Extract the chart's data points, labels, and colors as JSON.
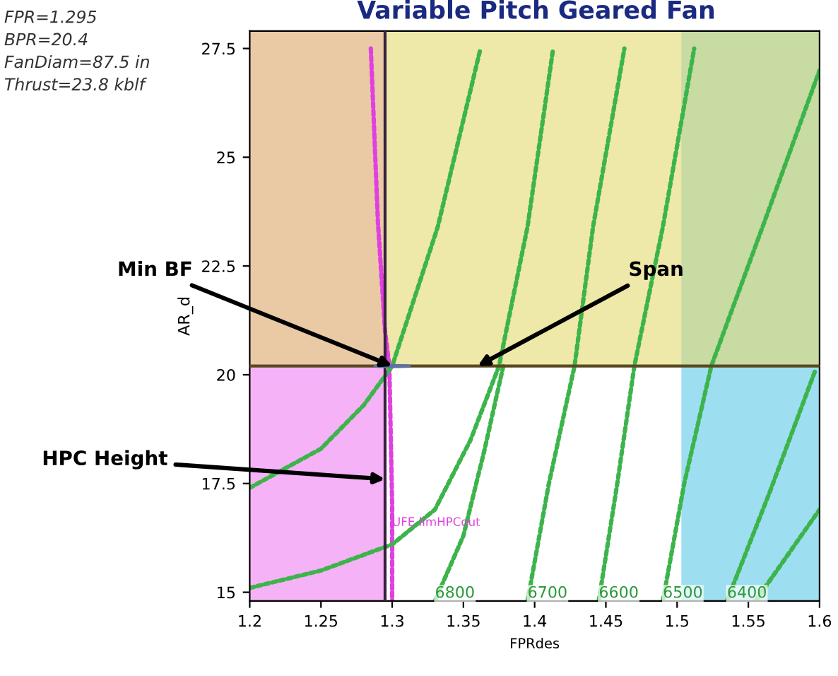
{
  "chart_data": {
    "type": "line",
    "title": "Variable Pitch Geared Fan",
    "xlabel": "FPRdes",
    "ylabel": "AR_d",
    "xlim": [
      1.2,
      1.6
    ],
    "ylim": [
      14.8,
      27.9
    ],
    "xticks": [
      1.2,
      1.25,
      1.3,
      1.35,
      1.4,
      1.45,
      1.5,
      1.55,
      1.6
    ],
    "yticks": [
      15,
      17.5,
      20,
      22.5,
      25,
      27.5
    ],
    "grid": false,
    "line_style": "dotted",
    "marker": "none",
    "bands": [
      {
        "axis": "x",
        "from": 1.2,
        "to": 1.295,
        "color": "#f07ef0"
      },
      {
        "axis": "x",
        "from": 1.503,
        "to": 1.6,
        "color": "#5ec8e8"
      },
      {
        "axis": "y",
        "from": 20.2,
        "to": 27.9,
        "color": "#e2d870"
      }
    ],
    "ref_lines": [
      {
        "axis": "x",
        "value": 1.295,
        "color": "#3a2040",
        "line_style": "solid"
      },
      {
        "axis": "y",
        "value": 20.2,
        "color": "#5a4a20",
        "line_style": "solid"
      }
    ],
    "series": [
      {
        "color": "#e040e0",
        "x": [
          1.285,
          1.29,
          1.295,
          1.298,
          1.3,
          1.3
        ],
        "values": [
          27.5,
          23.5,
          21,
          20.2,
          17,
          14.8
        ]
      },
      {
        "color": "#3cb44b",
        "x": [
          1.2,
          1.25,
          1.28,
          1.3,
          1.332,
          1.362
        ],
        "values": [
          17.4,
          18.3,
          19.3,
          20.2,
          23.4,
          27.5
        ]
      },
      {
        "color": "#3cb44b",
        "x": [
          1.2,
          1.25,
          1.3,
          1.33,
          1.355,
          1.375,
          1.395,
          1.413
        ],
        "values": [
          15.1,
          15.5,
          16.1,
          16.9,
          18.5,
          20.2,
          23.4,
          27.5
        ]
      },
      {
        "color": "#3cb44b",
        "x": [
          1.33,
          1.35,
          1.365,
          1.378
        ],
        "values": [
          14.8,
          16.3,
          18.3,
          20.2
        ]
      },
      {
        "color": "#3cb44b",
        "x": [
          1.395,
          1.41,
          1.428,
          1.441,
          1.463
        ],
        "values": [
          14.8,
          17.5,
          20.2,
          23.4,
          27.5
        ]
      },
      {
        "color": "#3cb44b",
        "x": [
          1.445,
          1.458,
          1.47,
          1.49,
          1.512
        ],
        "values": [
          14.8,
          17.5,
          20.2,
          23.4,
          27.5
        ]
      },
      {
        "color": "#3cb44b",
        "x": [
          1.49,
          1.505,
          1.524,
          1.56,
          1.6
        ],
        "values": [
          14.8,
          17.5,
          20.2,
          23.4,
          27.0
        ]
      },
      {
        "color": "#3cb44b",
        "x": [
          1.535,
          1.565,
          1.597
        ],
        "values": [
          14.8,
          17.3,
          20.1
        ]
      },
      {
        "color": "#3cb44b",
        "x": [
          1.555,
          1.6
        ],
        "values": [
          14.8,
          16.9
        ]
      }
    ],
    "annotations": [
      "FPR=1.295\nBPR=20.4\nFanDiam=87.5 in\nThrust=23.8 kblf",
      {
        "text": "Min BF",
        "x": 1.3,
        "y": 20.2
      },
      {
        "text": "Span",
        "x": 1.36,
        "y": 20.2
      },
      {
        "text": "HPC Height",
        "x": 1.295,
        "y": 17.6
      },
      {
        "text": "UFE limHPCout",
        "x": 1.3,
        "y": 16.6
      },
      {
        "text": "6800",
        "x": 1.33,
        "y": 14.8
      },
      {
        "text": "6700",
        "x": 1.395,
        "y": 14.8
      },
      {
        "text": "6600",
        "x": 1.445,
        "y": 14.8
      },
      {
        "text": "6500",
        "x": 1.49,
        "y": 14.8
      },
      {
        "text": "6400",
        "x": 1.535,
        "y": 14.8
      }
    ]
  }
}
